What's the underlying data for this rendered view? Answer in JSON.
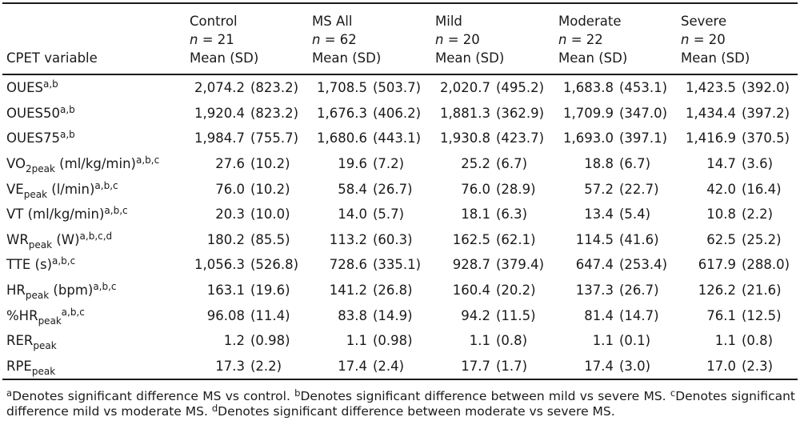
{
  "colors": {
    "background": "#ffffff",
    "text": "#1a1a1a",
    "rule": "#1a1a1a"
  },
  "table": {
    "variable_column_header": "CPET variable",
    "groups": [
      {
        "name": "Control",
        "n_italic": "n",
        "n_rest": " = 21",
        "stat": "Mean (SD)"
      },
      {
        "name": "MS All",
        "n_italic": "n",
        "n_rest": " = 62",
        "stat": "Mean (SD)"
      },
      {
        "name": "Mild",
        "n_italic": "n",
        "n_rest": " = 20",
        "stat": "Mean (SD)"
      },
      {
        "name": "Moderate",
        "n_italic": "n",
        "n_rest": " = 22",
        "stat": "Mean (SD)"
      },
      {
        "name": "Severe",
        "n_italic": "n",
        "n_rest": " = 20",
        "stat": "Mean (SD)"
      }
    ],
    "rows": [
      {
        "label": [
          [
            "t",
            "OUES"
          ],
          [
            "sup",
            "a,b"
          ]
        ],
        "values": [
          {
            "mean": "2,074.2",
            "sd": "(823.2)"
          },
          {
            "mean": "1,708.5",
            "sd": "(503.7)"
          },
          {
            "mean": "2,020.7",
            "sd": "(495.2)"
          },
          {
            "mean": "1,683.8",
            "sd": "(453.1)"
          },
          {
            "mean": "1,423.5",
            "sd": "(392.0)"
          }
        ]
      },
      {
        "label": [
          [
            "t",
            "OUES50"
          ],
          [
            "sup",
            "a,b"
          ]
        ],
        "values": [
          {
            "mean": "1,920.4",
            "sd": "(823.2)"
          },
          {
            "mean": "1,676.3",
            "sd": "(406.2)"
          },
          {
            "mean": "1,881.3",
            "sd": "(362.9)"
          },
          {
            "mean": "1,709.9",
            "sd": "(347.0)"
          },
          {
            "mean": "1,434.4",
            "sd": "(397.2)"
          }
        ]
      },
      {
        "label": [
          [
            "t",
            "OUES75"
          ],
          [
            "sup",
            "a,b"
          ]
        ],
        "values": [
          {
            "mean": "1,984.7",
            "sd": "(755.7)"
          },
          {
            "mean": "1,680.6",
            "sd": "(443.1)"
          },
          {
            "mean": "1,930.8",
            "sd": "(423.7)"
          },
          {
            "mean": "1,693.0",
            "sd": "(397.1)"
          },
          {
            "mean": "1,416.9",
            "sd": "(370.5)"
          }
        ]
      },
      {
        "label": [
          [
            "t",
            "VO"
          ],
          [
            "sub",
            "2peak"
          ],
          [
            "t",
            " (ml/kg/min)"
          ],
          [
            "sup",
            "a,b,c"
          ]
        ],
        "values": [
          {
            "mean": "27.6",
            "sd": "(10.2)"
          },
          {
            "mean": "19.6",
            "sd": "(7.2)"
          },
          {
            "mean": "25.2",
            "sd": "(6.7)"
          },
          {
            "mean": "18.8",
            "sd": "(6.7)"
          },
          {
            "mean": "14.7",
            "sd": "(3.6)"
          }
        ]
      },
      {
        "label": [
          [
            "t",
            "VE"
          ],
          [
            "sub",
            "peak"
          ],
          [
            "t",
            " (l/min)"
          ],
          [
            "sup",
            "a,b,c"
          ]
        ],
        "values": [
          {
            "mean": "76.0",
            "sd": "(10.2)"
          },
          {
            "mean": "58.4",
            "sd": "(26.7)"
          },
          {
            "mean": "76.0",
            "sd": "(28.9)"
          },
          {
            "mean": "57.2",
            "sd": "(22.7)"
          },
          {
            "mean": "42.0",
            "sd": "(16.4)"
          }
        ]
      },
      {
        "label": [
          [
            "t",
            "VT (ml/kg/min)"
          ],
          [
            "sup",
            "a,b,c"
          ]
        ],
        "values": [
          {
            "mean": "20.3",
            "sd": "(10.0)"
          },
          {
            "mean": "14.0",
            "sd": "(5.7)"
          },
          {
            "mean": "18.1",
            "sd": "(6.3)"
          },
          {
            "mean": "13.4",
            "sd": "(5.4)"
          },
          {
            "mean": "10.8",
            "sd": "(2.2)"
          }
        ]
      },
      {
        "label": [
          [
            "t",
            "WR"
          ],
          [
            "sub",
            "peak"
          ],
          [
            "t",
            " (W)"
          ],
          [
            "sup",
            "a,b,c,d"
          ]
        ],
        "values": [
          {
            "mean": "180.2",
            "sd": "(85.5)"
          },
          {
            "mean": "113.2",
            "sd": "(60.3)"
          },
          {
            "mean": "162.5",
            "sd": "(62.1)"
          },
          {
            "mean": "114.5",
            "sd": "(41.6)"
          },
          {
            "mean": "62.5",
            "sd": "(25.2)"
          }
        ]
      },
      {
        "label": [
          [
            "t",
            "TTE (s)"
          ],
          [
            "sup",
            "a,b,c"
          ]
        ],
        "values": [
          {
            "mean": "1,056.3",
            "sd": "(526.8)"
          },
          {
            "mean": "728.6",
            "sd": "(335.1)"
          },
          {
            "mean": "928.7",
            "sd": "(379.4)"
          },
          {
            "mean": "647.4",
            "sd": "(253.4)"
          },
          {
            "mean": "617.9",
            "sd": "(288.0)"
          }
        ]
      },
      {
        "label": [
          [
            "t",
            "HR"
          ],
          [
            "sub",
            "peak"
          ],
          [
            "t",
            " (bpm)"
          ],
          [
            "sup",
            "a,b,c"
          ]
        ],
        "values": [
          {
            "mean": "163.1",
            "sd": "(19.6)"
          },
          {
            "mean": "141.2",
            "sd": "(26.8)"
          },
          {
            "mean": "160.4",
            "sd": "(20.2)"
          },
          {
            "mean": "137.3",
            "sd": "(26.7)"
          },
          {
            "mean": "126.2",
            "sd": "(21.6)"
          }
        ]
      },
      {
        "label": [
          [
            "t",
            "%HR"
          ],
          [
            "sub",
            "peak"
          ],
          [
            "sup",
            "a,b,c"
          ]
        ],
        "values": [
          {
            "mean": "96.08",
            "sd": "(11.4)"
          },
          {
            "mean": "83.8",
            "sd": "(14.9)"
          },
          {
            "mean": "94.2",
            "sd": "(11.5)"
          },
          {
            "mean": "81.4",
            "sd": "(14.7)"
          },
          {
            "mean": "76.1",
            "sd": "(12.5)"
          }
        ]
      },
      {
        "label": [
          [
            "t",
            "RER"
          ],
          [
            "sub",
            "peak"
          ]
        ],
        "values": [
          {
            "mean": "1.2",
            "sd": "(0.98)"
          },
          {
            "mean": "1.1",
            "sd": "(0.98)"
          },
          {
            "mean": "1.1",
            "sd": "(0.8)"
          },
          {
            "mean": "1.1",
            "sd": "(0.1)"
          },
          {
            "mean": "1.1",
            "sd": "(0.8)"
          }
        ]
      },
      {
        "label": [
          [
            "t",
            "RPE"
          ],
          [
            "sub",
            "peak"
          ]
        ],
        "values": [
          {
            "mean": "17.3",
            "sd": "(2.2)"
          },
          {
            "mean": "17.4",
            "sd": "(2.4)"
          },
          {
            "mean": "17.7",
            "sd": "(1.7)"
          },
          {
            "mean": "17.4",
            "sd": "(3.0)"
          },
          {
            "mean": "17.0",
            "sd": "(2.3)"
          }
        ]
      }
    ]
  },
  "footnotes": [
    {
      "marker": "a",
      "text": "Denotes significant difference MS vs control."
    },
    {
      "marker": "b",
      "text": "Denotes significant difference between mild vs severe MS."
    },
    {
      "marker": "c",
      "text": "Denotes significant difference mild vs moderate MS."
    },
    {
      "marker": "d",
      "text": "Denotes significant difference between moderate vs severe MS."
    }
  ]
}
